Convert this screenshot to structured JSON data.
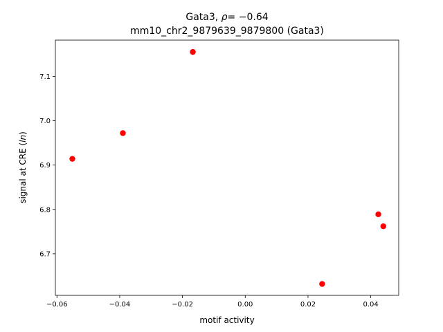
{
  "chart_data": {
    "type": "scatter",
    "title_line1_prefix": "Gata3, ",
    "title_line1_rho": "ρ",
    "title_line1_suffix": "= −0.64",
    "title_line2": "mm10_chr2_9879639_9879800 (Gata3)",
    "xlabel": "motif activity",
    "ylabel_prefix": "signal at CRE (",
    "ylabel_italic": "ln",
    "ylabel_suffix": ")",
    "xlim": [
      -0.0605,
      0.0489
    ],
    "ylim": [
      6.6063,
      7.1817
    ],
    "x_ticks": [
      {
        "value": -0.06,
        "label": "−0.06"
      },
      {
        "value": -0.04,
        "label": "−0.04"
      },
      {
        "value": -0.02,
        "label": "−0.02"
      },
      {
        "value": 0.0,
        "label": "0.00"
      },
      {
        "value": 0.02,
        "label": "0.02"
      },
      {
        "value": 0.04,
        "label": "0.04"
      }
    ],
    "y_ticks": [
      {
        "value": 6.7,
        "label": "6.7"
      },
      {
        "value": 6.8,
        "label": "6.8"
      },
      {
        "value": 6.9,
        "label": "6.9"
      },
      {
        "value": 7.0,
        "label": "7.0"
      },
      {
        "value": 7.1,
        "label": "7.1"
      }
    ],
    "grid": false,
    "point_color": "#ff0000",
    "points": [
      {
        "x": -0.0551,
        "y": 6.914
      },
      {
        "x": -0.039,
        "y": 6.972
      },
      {
        "x": -0.0167,
        "y": 7.155
      },
      {
        "x": 0.0245,
        "y": 6.632
      },
      {
        "x": 0.0424,
        "y": 6.789
      },
      {
        "x": 0.044,
        "y": 6.762
      }
    ]
  }
}
